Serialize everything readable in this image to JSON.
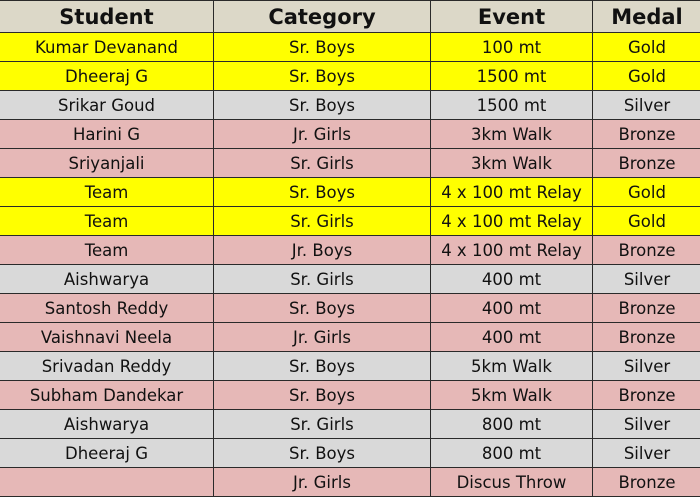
{
  "headers": [
    "Student",
    "Category",
    "Event",
    "Medal"
  ],
  "colors": {
    "header": "#dcd8c8",
    "Gold": "#ffff00",
    "Silver": "#d9d9d9",
    "Bronze": "#e6b8b7"
  },
  "rows": [
    {
      "student": "Kumar Devanand",
      "category": "Sr. Boys",
      "event": "100 mt",
      "medal": "Gold"
    },
    {
      "student": "Dheeraj G",
      "category": "Sr. Boys",
      "event": "1500 mt",
      "medal": "Gold"
    },
    {
      "student": "Srikar Goud",
      "category": "Sr. Boys",
      "event": "1500 mt",
      "medal": "Silver"
    },
    {
      "student": "Harini G",
      "category": "Jr. Girls",
      "event": "3km Walk",
      "medal": "Bronze"
    },
    {
      "student": "Sriyanjali",
      "category": "Sr. Girls",
      "event": "3km Walk",
      "medal": "Bronze"
    },
    {
      "student": "Team",
      "category": "Sr. Boys",
      "event": "4 x 100 mt Relay",
      "medal": "Gold"
    },
    {
      "student": "Team",
      "category": "Sr. Girls",
      "event": "4 x 100 mt Relay",
      "medal": "Gold"
    },
    {
      "student": "Team",
      "category": "Jr. Boys",
      "event": "4 x 100 mt Relay",
      "medal": "Bronze"
    },
    {
      "student": "Aishwarya",
      "category": "Sr. Girls",
      "event": "400 mt",
      "medal": "Silver"
    },
    {
      "student": "Santosh Reddy",
      "category": "Sr. Boys",
      "event": "400 mt",
      "medal": "Bronze"
    },
    {
      "student": "Vaishnavi Neela",
      "category": "Jr. Girls",
      "event": "400 mt",
      "medal": "Bronze"
    },
    {
      "student": "Srivadan Reddy",
      "category": "Sr. Boys",
      "event": "5km Walk",
      "medal": "Silver"
    },
    {
      "student": "Subham Dandekar",
      "category": "Sr. Boys",
      "event": "5km Walk",
      "medal": "Bronze"
    },
    {
      "student": "Aishwarya",
      "category": "Sr. Girls",
      "event": "800 mt",
      "medal": "Silver"
    },
    {
      "student": "Dheeraj G",
      "category": "Sr. Boys",
      "event": "800 mt",
      "medal": "Silver"
    },
    {
      "student": "",
      "category": "Jr. Girls",
      "event": "Discus Throw",
      "medal": "Bronze"
    }
  ]
}
